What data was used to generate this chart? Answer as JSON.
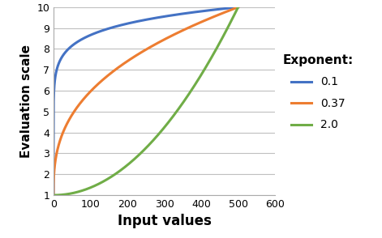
{
  "title": "",
  "xlabel": "Input values",
  "ylabel": "Evaluation scale",
  "xlim": [
    0,
    600
  ],
  "ylim": [
    1,
    10
  ],
  "xticks": [
    0,
    100,
    200,
    300,
    400,
    500,
    600
  ],
  "yticks": [
    1,
    2,
    3,
    4,
    5,
    6,
    7,
    8,
    9,
    10
  ],
  "x_max": 500,
  "y_min": 1,
  "y_max": 10,
  "exponents": [
    0.1,
    0.37,
    2.0
  ],
  "colors": [
    "#4472C4",
    "#ED7D31",
    "#70AD47"
  ],
  "labels": [
    "0.1",
    "0.37",
    "2.0"
  ],
  "legend_title": "Exponent:",
  "background_color": "#FFFFFF",
  "grid_color": "#BFBFBF",
  "linewidth": 2.2
}
